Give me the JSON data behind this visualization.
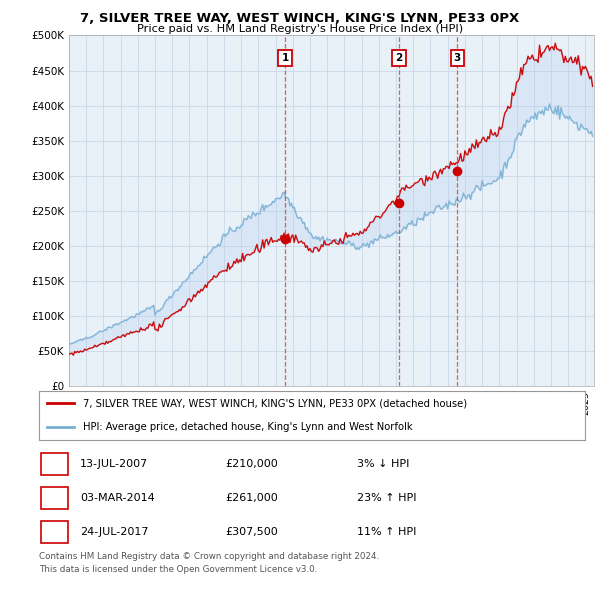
{
  "title": "7, SILVER TREE WAY, WEST WINCH, KING'S LYNN, PE33 0PX",
  "subtitle": "Price paid vs. HM Land Registry's House Price Index (HPI)",
  "legend_property": "7, SILVER TREE WAY, WEST WINCH, KING'S LYNN, PE33 0PX (detached house)",
  "legend_hpi": "HPI: Average price, detached house, King's Lynn and West Norfolk",
  "sales": [
    {
      "label": "1",
      "date": "13-JUL-2007",
      "price": 210000,
      "price_str": "£210,000",
      "pct": "3%",
      "dir": "↓",
      "x_year": 2007.55
    },
    {
      "label": "2",
      "date": "03-MAR-2014",
      "price": 261000,
      "price_str": "£261,000",
      "pct": "23%",
      "dir": "↑",
      "x_year": 2014.17
    },
    {
      "label": "3",
      "date": "24-JUL-2017",
      "price": 307500,
      "price_str": "£307,500",
      "pct": "11%",
      "dir": "↑",
      "x_year": 2017.56
    }
  ],
  "property_color": "#cc0000",
  "hpi_color": "#7ab0d4",
  "fill_color": "#ddeeff",
  "vline_color": "#dd4444",
  "background_color": "#ffffff",
  "plot_bg_color": "#e8f0f8",
  "grid_color": "#c8d8e8",
  "ylim": [
    0,
    500000
  ],
  "xlim_start": 1995,
  "xlim_end": 2025.5,
  "yticks": [
    0,
    50000,
    100000,
    150000,
    200000,
    250000,
    300000,
    350000,
    400000,
    450000,
    500000
  ],
  "ytick_labels": [
    "£0",
    "£50K",
    "£100K",
    "£150K",
    "£200K",
    "£250K",
    "£300K",
    "£350K",
    "£400K",
    "£450K",
    "£500K"
  ],
  "footer_line1": "Contains HM Land Registry data © Crown copyright and database right 2024.",
  "footer_line2": "This data is licensed under the Open Government Licence v3.0."
}
